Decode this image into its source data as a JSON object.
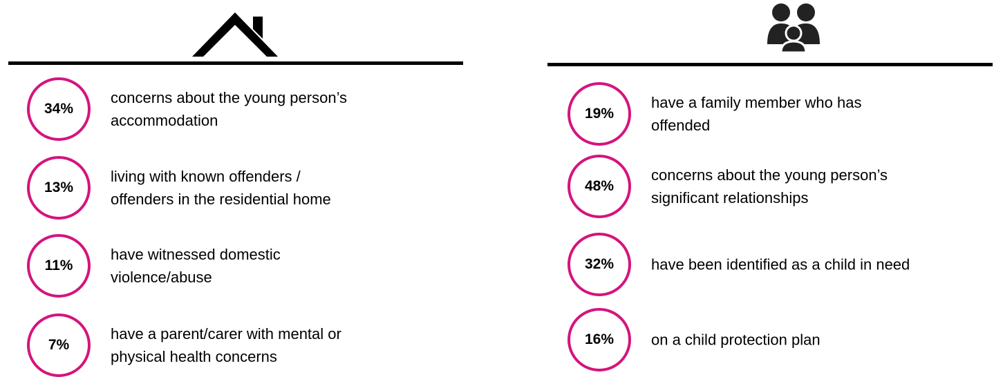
{
  "panels": [
    {
      "items": [
        {
          "value": "34%",
          "lines": [
            "concerns about the young person’s",
            "accommodation"
          ]
        },
        {
          "value": "13%",
          "lines": [
            "living with known offenders /",
            "offenders in the residential home"
          ]
        },
        {
          "value": "11%",
          "lines": [
            "have witnessed domestic",
            "violence/abuse"
          ]
        },
        {
          "value": "7%",
          "lines": [
            "have a parent/carer with mental or",
            "physical health concerns"
          ]
        }
      ]
    },
    {
      "items": [
        {
          "value": "19%",
          "lines": [
            "have a family member who has",
            "offended"
          ]
        },
        {
          "value": "48%",
          "lines": [
            "concerns about the young person’s",
            "significant relationships"
          ]
        },
        {
          "value": "32%",
          "lines": [
            "have been identified as a child in need"
          ]
        },
        {
          "value": "16%",
          "lines": [
            "on a child protection plan"
          ]
        }
      ]
    }
  ]
}
